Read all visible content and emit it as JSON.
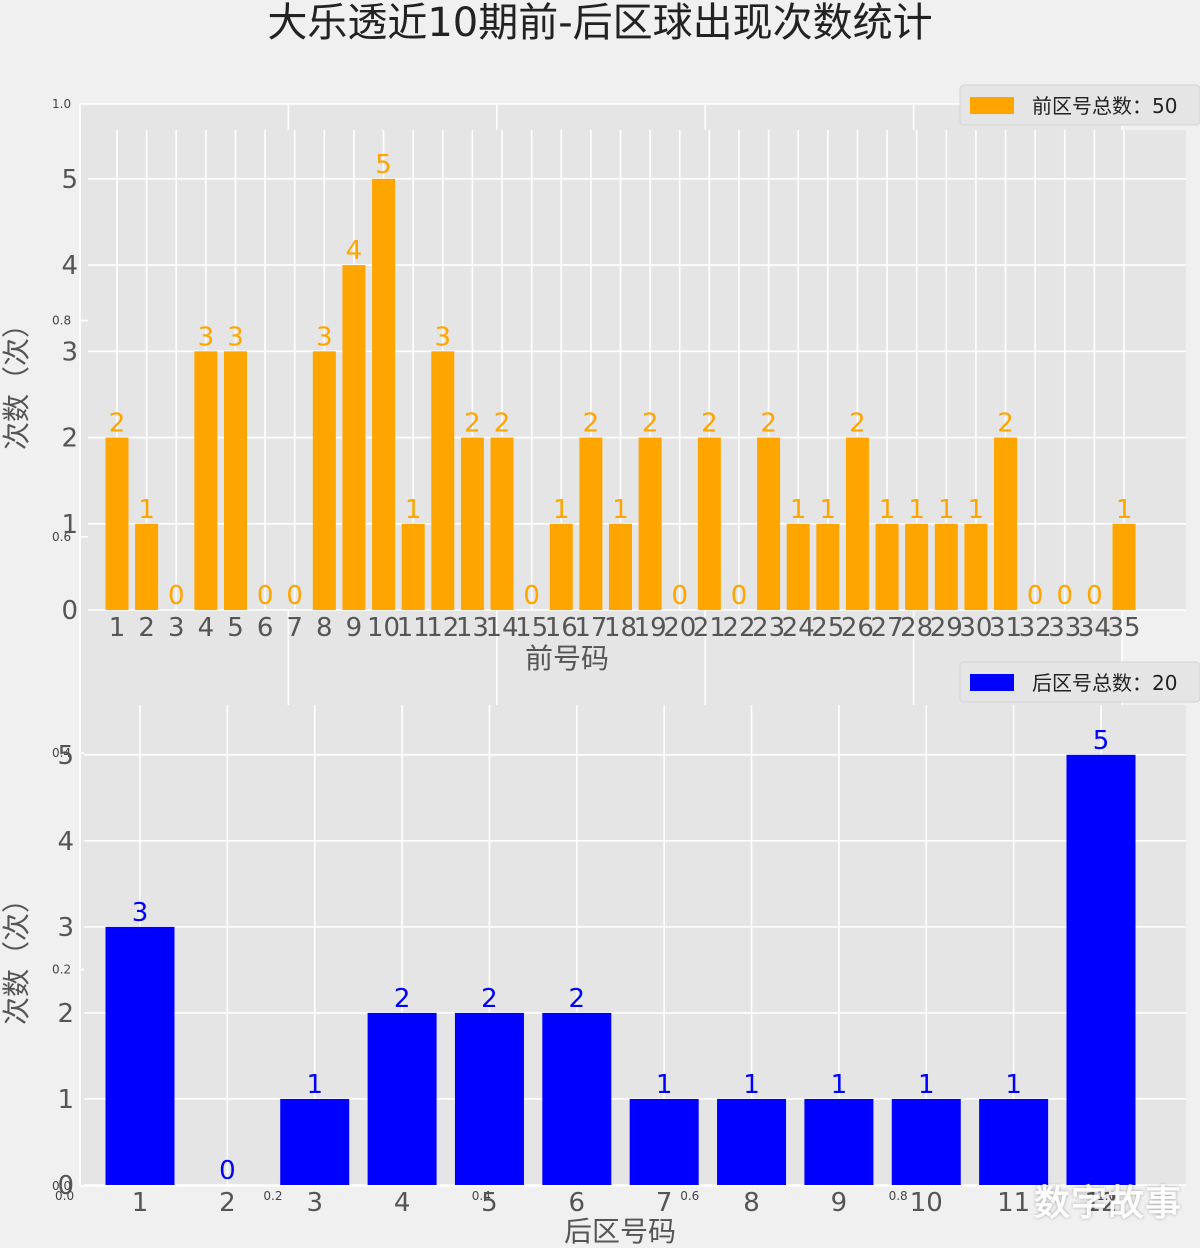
{
  "title": "大乐透近10期前-后区球出现次数统计",
  "watermark": "数字故事",
  "colors": {
    "front": "#ffa500",
    "back": "#0000ff",
    "panel_bg": "#e5e5e5",
    "grid": "#ffffff",
    "page_bg": "#f0f0f0",
    "text": "#555555"
  },
  "chart_data": [
    {
      "type": "bar",
      "name": "front",
      "categories": [
        "1",
        "2",
        "3",
        "4",
        "5",
        "6",
        "7",
        "8",
        "9",
        "10",
        "11",
        "12",
        "13",
        "14",
        "15",
        "16",
        "17",
        "18",
        "19",
        "20",
        "21",
        "22",
        "23",
        "24",
        "25",
        "26",
        "27",
        "28",
        "29",
        "30",
        "31",
        "32",
        "33",
        "34",
        "35"
      ],
      "values": [
        2,
        1,
        0,
        3,
        3,
        0,
        0,
        3,
        4,
        5,
        1,
        3,
        2,
        2,
        0,
        1,
        2,
        1,
        2,
        0,
        2,
        0,
        2,
        1,
        1,
        2,
        1,
        1,
        1,
        1,
        2,
        0,
        0,
        0,
        1
      ],
      "xlabel": "前号码",
      "ylabel": "次数（次）",
      "yticks": [
        0,
        1,
        2,
        3,
        4,
        5
      ],
      "ylim": [
        0,
        5.3
      ],
      "legend": "前区号总数：50",
      "legend_position": "top-right",
      "grid": true,
      "color": "#ffa500"
    },
    {
      "type": "bar",
      "name": "back",
      "categories": [
        "1",
        "2",
        "3",
        "4",
        "5",
        "6",
        "7",
        "8",
        "9",
        "10",
        "11",
        "12"
      ],
      "values": [
        3,
        0,
        1,
        2,
        2,
        2,
        1,
        1,
        1,
        1,
        1,
        5
      ],
      "xlabel": "后区号码",
      "ylabel": "次数（次）",
      "yticks": [
        0,
        1,
        2,
        3,
        4,
        5
      ],
      "ylim": [
        0,
        5.3
      ],
      "legend": "后区号总数：20",
      "legend_position": "top-right",
      "grid": true,
      "color": "#0000ff"
    }
  ],
  "ghost_axis": {
    "xticks": [
      "0.0",
      "0.2",
      "0.4",
      "0.6",
      "0.8",
      "1.0"
    ],
    "yticks": [
      "0.0",
      "0.2",
      "0.4",
      "0.6",
      "0.8",
      "1.0"
    ]
  }
}
